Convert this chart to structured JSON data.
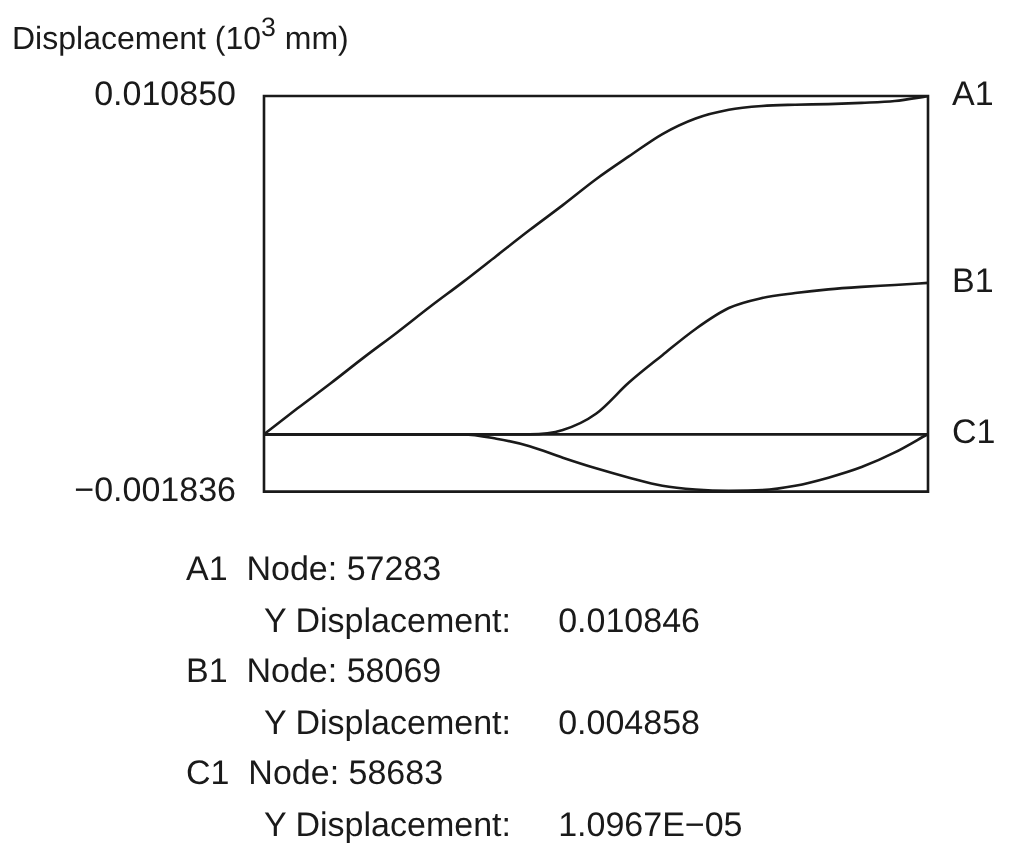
{
  "chart_data": {
    "type": "line",
    "ylabel": "Displacement (10$^{3}$ mm)",
    "categories": [
      null,
      null,
      null,
      null,
      null,
      null,
      null,
      null,
      null,
      null,
      null,
      null,
      null,
      null,
      null,
      null,
      null,
      null,
      null,
      null,
      null
    ],
    "series": [
      {
        "name": "A1",
        "color": "#1a1a1a",
        "values": [
          0,
          0.000826,
          0.00163,
          0.00246,
          0.00326,
          0.00409,
          0.00489,
          0.00572,
          0.00655,
          0.00735,
          0.00818,
          0.00892,
          0.00963,
          0.01013,
          0.01041,
          0.01053,
          0.01057,
          0.01059,
          0.01063,
          0.01069,
          0.010846
        ]
      },
      {
        "name": "B1",
        "color": "#1a1a1a",
        "values": [
          0,
          0,
          0,
          0,
          0,
          0,
          0,
          0,
          0,
          0.00014,
          0.00066,
          0.00167,
          0.00254,
          0.00338,
          0.00405,
          0.00437,
          0.00453,
          0.00465,
          0.00473,
          0.00479,
          0.004858
        ]
      },
      {
        "name": "C1",
        "color": "#1a1a1a",
        "values": [
          0,
          0,
          0,
          0,
          0,
          0,
          0,
          -0.00014,
          -0.00038,
          -0.00075,
          -0.00109,
          -0.00139,
          -0.00165,
          -0.00177,
          -0.00181,
          -0.00179,
          -0.00165,
          -0.00139,
          -0.00105,
          -0.00058,
          1.0967e-05
        ]
      }
    ],
    "ylim": [
      -0.001836,
      0.01085
    ],
    "yticks": [
      {
        "value": 0.01085,
        "label": "0.010850"
      },
      {
        "value": -0.001836,
        "label": "−0.001836"
      }
    ],
    "ref_lines": [
      {
        "axis": "y",
        "value": 0,
        "color": "#1a1a1a"
      }
    ],
    "tick_labels": "y",
    "marker": "none",
    "line_style": "solid",
    "annotations": [
      "A1  Node: 57283",
      "Y Displacement:     0.010846",
      "B1  Node: 58069",
      "Y Displacement:     0.004858",
      "C1  Node: 58683",
      "Y Displacement:     1.0967E−05"
    ]
  }
}
